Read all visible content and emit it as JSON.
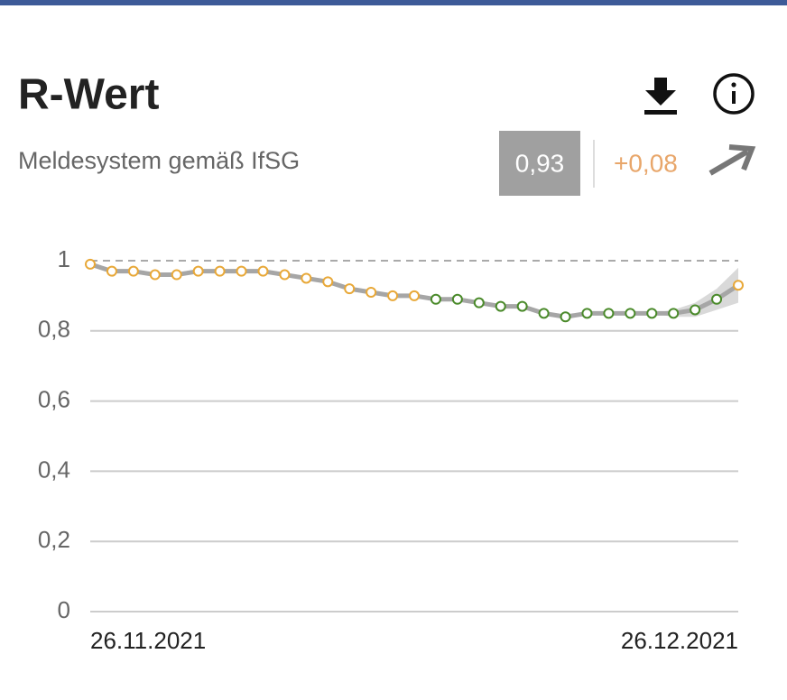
{
  "header": {
    "title": "R-Wert",
    "subtitle": "Meldesystem gemäß IfSG",
    "value": "0,93",
    "change": "+0,08"
  },
  "chart_data": {
    "type": "line",
    "categories": [
      "26.11.2021",
      null,
      null,
      null,
      null,
      null,
      null,
      null,
      null,
      null,
      null,
      null,
      null,
      null,
      null,
      null,
      null,
      null,
      null,
      null,
      null,
      null,
      null,
      null,
      null,
      null,
      null,
      null,
      null,
      null,
      "26.12.2021"
    ],
    "values": [
      0.99,
      0.97,
      0.97,
      0.96,
      0.96,
      0.97,
      0.97,
      0.97,
      0.97,
      0.96,
      0.95,
      0.94,
      0.92,
      0.91,
      0.9,
      0.9,
      0.89,
      0.89,
      0.88,
      0.87,
      0.87,
      0.85,
      0.84,
      0.85,
      0.85,
      0.85,
      0.85,
      0.85,
      0.86,
      0.89,
      0.93
    ],
    "band_lower": [
      null,
      null,
      null,
      null,
      null,
      null,
      null,
      null,
      null,
      null,
      null,
      null,
      null,
      null,
      null,
      null,
      null,
      null,
      null,
      null,
      null,
      null,
      null,
      null,
      null,
      null,
      0.85,
      0.84,
      0.84,
      0.86,
      0.88
    ],
    "band_upper": [
      null,
      null,
      null,
      null,
      null,
      null,
      null,
      null,
      null,
      null,
      null,
      null,
      null,
      null,
      null,
      null,
      null,
      null,
      null,
      null,
      null,
      null,
      null,
      null,
      null,
      null,
      0.85,
      0.86,
      0.88,
      0.92,
      0.98
    ],
    "line_color": "#a6a6a6",
    "band_color": "#d9d9d9",
    "point_colors": [
      "#e8a838",
      "#e8a838",
      "#e8a838",
      "#e8a838",
      "#e8a838",
      "#e8a838",
      "#e8a838",
      "#e8a838",
      "#e8a838",
      "#e8a838",
      "#e8a838",
      "#e8a838",
      "#e8a838",
      "#e8a838",
      "#e8a838",
      "#e8a838",
      "#4a8a2a",
      "#4a8a2a",
      "#4a8a2a",
      "#4a8a2a",
      "#4a8a2a",
      "#4a8a2a",
      "#4a8a2a",
      "#4a8a2a",
      "#4a8a2a",
      "#4a8a2a",
      "#4a8a2a",
      "#4a8a2a",
      "#4a8a2a",
      "#4a8a2a",
      "#e8a838"
    ],
    "ylim": [
      0,
      1
    ],
    "yticks": [
      0,
      {
        "value": 0.2,
        "label": "0,2"
      },
      {
        "value": 0.4,
        "label": "0,4"
      },
      {
        "value": 0.6,
        "label": "0,6"
      },
      {
        "value": 0.8,
        "label": "0,8"
      },
      1
    ],
    "grid": true
  }
}
